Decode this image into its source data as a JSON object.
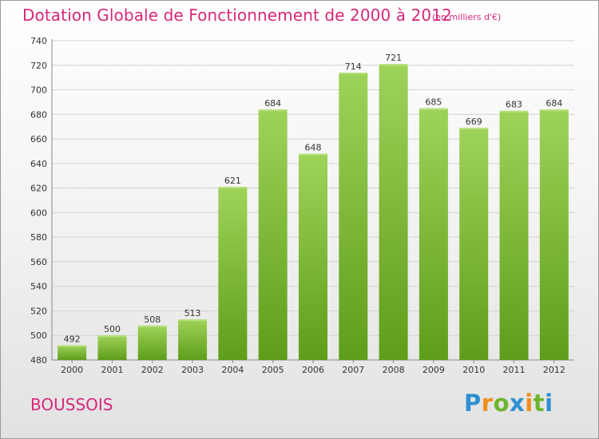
{
  "header": {
    "title": "Dotation Globale de Fonctionnement de 2000 à 2012",
    "units": "(en milliers d'€)"
  },
  "footer": {
    "commune": "BOUSSOIS",
    "logo": {
      "text": "Proxiti",
      "letters": [
        "P",
        "r",
        "o",
        "x",
        "i",
        "t",
        "i"
      ],
      "colors": [
        "#2e8fd1",
        "#f28c1a",
        "#6cb52d",
        "#2e8fd1",
        "#f28c1a",
        "#6cb52d",
        "#2e8fd1"
      ]
    }
  },
  "colors": {
    "title": "#d8287a",
    "bar_light": "#9ed35a",
    "bar_dark": "#5e9d1a",
    "grid": "#d2d2d2"
  },
  "chart_data": {
    "type": "bar",
    "title": "Dotation Globale de Fonctionnement de 2000 à 2012",
    "subtitle": "(en milliers d'€)",
    "categories": [
      "2000",
      "2001",
      "2002",
      "2003",
      "2004",
      "2005",
      "2006",
      "2007",
      "2008",
      "2009",
      "2010",
      "2011",
      "2012"
    ],
    "values": [
      492,
      500,
      508,
      513,
      621,
      684,
      648,
      714,
      721,
      685,
      669,
      683,
      684
    ],
    "ylim": [
      480,
      740
    ],
    "yticks": [
      480,
      500,
      520,
      540,
      560,
      580,
      600,
      620,
      640,
      660,
      680,
      700,
      720,
      740
    ],
    "grid": true,
    "xlabel": "",
    "ylabel": ""
  }
}
